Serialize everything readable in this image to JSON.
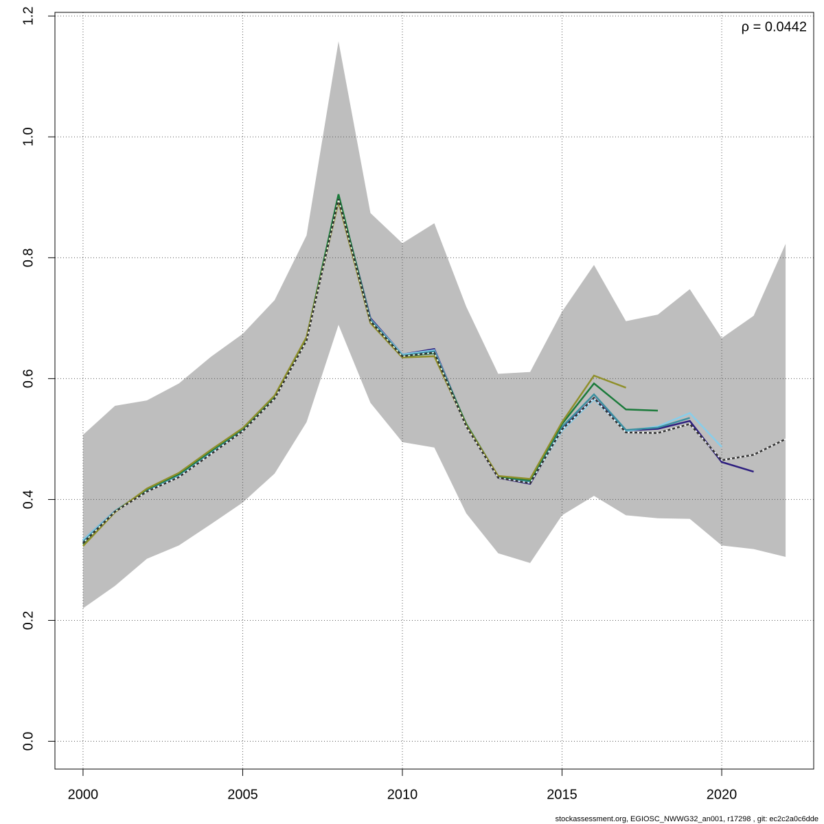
{
  "chart_data": {
    "type": "line",
    "annotation": "ρ = 0.0442",
    "footer": "stockassessment.org, EGIOSC_NWWG32_an001, r17298 , git: ec2c2a0c6dde",
    "x": [
      2000,
      2001,
      2002,
      2003,
      2004,
      2005,
      2006,
      2007,
      2008,
      2009,
      2010,
      2011,
      2012,
      2013,
      2014,
      2015,
      2016,
      2017,
      2018,
      2019,
      2020,
      2021,
      2022
    ],
    "xlim": [
      1999.12,
      2022.88
    ],
    "ylim": [
      -0.046,
      1.206
    ],
    "xticks": [
      2000,
      2005,
      2010,
      2015,
      2020
    ],
    "yticks": [
      {
        "value": 0,
        "label": "0.0"
      },
      0.2,
      0.4,
      0.6,
      0.8,
      {
        "value": 1,
        "label": "1.0"
      },
      1.2
    ],
    "grid": true,
    "band": {
      "color": "#bebebe",
      "upper": [
        0.507,
        0.555,
        0.564,
        0.592,
        0.636,
        0.674,
        0.73,
        0.837,
        1.158,
        0.874,
        0.824,
        0.857,
        0.719,
        0.608,
        0.611,
        0.711,
        0.788,
        0.695,
        0.706,
        0.748,
        0.667,
        0.704,
        0.823
      ],
      "lower": [
        0.22,
        0.257,
        0.302,
        0.324,
        0.359,
        0.395,
        0.443,
        0.528,
        0.689,
        0.56,
        0.495,
        0.486,
        0.377,
        0.311,
        0.295,
        0.374,
        0.406,
        0.374,
        0.369,
        0.368,
        0.324,
        0.318,
        0.305
      ]
    },
    "series": [
      {
        "color": "#333333",
        "dashed": true,
        "values": [
          0.328,
          0.38,
          0.413,
          0.437,
          0.475,
          0.513,
          0.567,
          0.663,
          0.897,
          0.695,
          0.637,
          0.643,
          0.521,
          0.436,
          0.427,
          0.516,
          0.568,
          0.511,
          0.51,
          0.525,
          0.465,
          0.474,
          0.5
        ]
      },
      {
        "color": "#2d1e7f",
        "values": [
          0.333,
          0.381,
          0.415,
          0.44,
          0.478,
          0.515,
          0.569,
          0.666,
          0.902,
          0.7,
          0.64,
          0.649,
          0.523,
          0.436,
          0.426,
          0.517,
          0.568,
          0.514,
          0.517,
          0.53,
          0.462,
          0.446,
          null
        ]
      },
      {
        "color": "#87ceeb",
        "values": [
          0.333,
          0.381,
          0.415,
          0.44,
          0.478,
          0.515,
          0.569,
          0.666,
          0.901,
          0.698,
          0.64,
          0.647,
          0.523,
          0.437,
          0.428,
          0.514,
          0.566,
          0.513,
          0.521,
          0.543,
          0.487,
          null,
          null
        ]
      },
      {
        "color": "#3a8fa0",
        "values": [
          0.33,
          0.38,
          0.416,
          0.441,
          0.479,
          0.516,
          0.57,
          0.667,
          0.903,
          0.697,
          0.638,
          0.645,
          0.524,
          0.438,
          0.43,
          0.52,
          0.574,
          0.515,
          0.519,
          0.535,
          null,
          null,
          null
        ]
      },
      {
        "color": "#1a7a3a",
        "values": [
          0.326,
          0.38,
          0.417,
          0.442,
          0.48,
          0.517,
          0.571,
          0.668,
          0.905,
          0.695,
          0.637,
          0.642,
          0.525,
          0.438,
          0.432,
          0.525,
          0.592,
          0.549,
          0.547,
          null,
          null,
          null,
          null
        ]
      },
      {
        "color": "#8f8f2a",
        "values": [
          0.323,
          0.379,
          0.418,
          0.444,
          0.482,
          0.518,
          0.572,
          0.669,
          0.893,
          0.692,
          0.635,
          0.637,
          0.523,
          0.439,
          0.434,
          0.528,
          0.605,
          0.585,
          null,
          null,
          null,
          null,
          null
        ]
      }
    ]
  }
}
